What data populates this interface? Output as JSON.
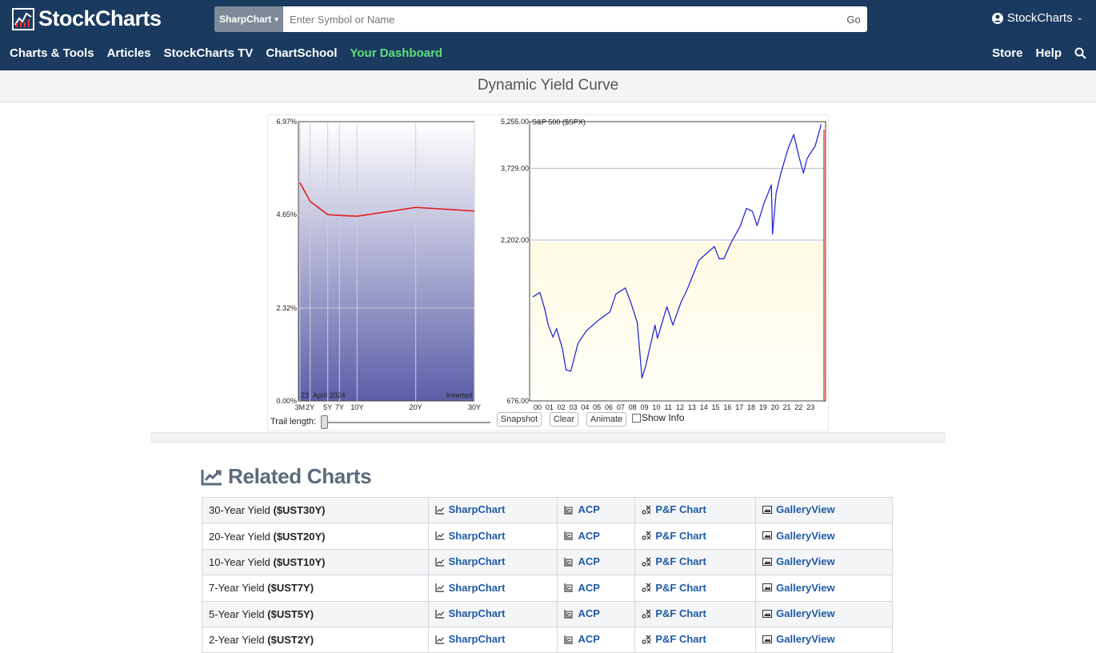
{
  "header": {
    "logo_text": "StockCharts",
    "search_type": "SharpChart",
    "search_placeholder": "Enter Symbol or Name",
    "search_go": "Go",
    "account_label": "StockCharts"
  },
  "nav": {
    "left": [
      "Charts & Tools",
      "Articles",
      "StockCharts TV",
      "ChartSchool",
      "Your Dashboard"
    ],
    "active_index": 4,
    "right": [
      "Store",
      "Help"
    ]
  },
  "page_title": "Dynamic Yield Curve",
  "chart_data": [
    {
      "type": "line",
      "title": "",
      "categories": [
        "3M",
        "2Y",
        "5Y",
        "7Y",
        "10Y",
        "20Y",
        "30Y"
      ],
      "values": [
        5.45,
        4.98,
        4.65,
        4.63,
        4.61,
        4.83,
        4.74
      ],
      "y_ticks": [
        "6.97%",
        "4.65%",
        "2.32%",
        "0.00%"
      ],
      "ylim": [
        0,
        6.97
      ],
      "date_day": "23",
      "date_label": "April 2024",
      "status_label": "Inverted",
      "colors": {
        "line": "#e02020",
        "fill_top": "#ffffff",
        "fill_bottom": "#5b5ea8"
      }
    },
    {
      "type": "line",
      "title": "S&P 500 ($SPX)",
      "x_ticks": [
        "00",
        "01",
        "02",
        "03",
        "04",
        "05",
        "06",
        "07",
        "08",
        "09",
        "10",
        "11",
        "12",
        "13",
        "14",
        "15",
        "16",
        "17",
        "18",
        "19",
        "20",
        "21",
        "22",
        "23"
      ],
      "y_ticks": [
        "5,255.00",
        "3,729.00",
        "2,202.00",
        "676.00"
      ],
      "y_scale": "log",
      "ylim": [
        676,
        5255
      ],
      "x": [
        2000,
        2000.6,
        2001,
        2001.3,
        2001.7,
        2002,
        2002.5,
        2002.8,
        2003.2,
        2003.8,
        2004.5,
        2005.5,
        2006.5,
        2007,
        2007.8,
        2008.3,
        2008.8,
        2009.2,
        2009.5,
        2010.3,
        2010.5,
        2011.3,
        2011.8,
        2012.5,
        2013,
        2014,
        2015.3,
        2015.7,
        2016.1,
        2016.7,
        2017.5,
        2018,
        2018.5,
        2018.9,
        2019.5,
        2020.1,
        2020.2,
        2020.5,
        2020.9,
        2021.5,
        2021.99,
        2022.4,
        2022.8,
        2023.1,
        2023.8,
        2024.3
      ],
      "values": [
        1450,
        1500,
        1330,
        1180,
        1080,
        1150,
        990,
        850,
        840,
        1030,
        1130,
        1220,
        1300,
        1480,
        1550,
        1380,
        1200,
        800,
        870,
        1180,
        1070,
        1350,
        1180,
        1400,
        1530,
        1900,
        2100,
        1920,
        1920,
        2160,
        2450,
        2780,
        2720,
        2450,
        2900,
        3300,
        2300,
        3100,
        3600,
        4300,
        4780,
        4100,
        3600,
        4000,
        4400,
        5150
      ],
      "colors": {
        "line": "#2a2ad8",
        "cursor": "#e02020",
        "fill_top": "#fffbe6",
        "fill_bottom": "#fffff6"
      }
    }
  ],
  "controls": {
    "trail_label": "Trail length:",
    "snapshot": "Snapshot",
    "clear": "Clear",
    "animate": "Animate",
    "show_info": "Show Info"
  },
  "related": {
    "title": "Related Charts",
    "link_labels": {
      "sharpchart": "SharpChart",
      "acp": "ACP",
      "pnf": "P&F Chart",
      "gallery": "GalleryView"
    },
    "rows": [
      {
        "name": "30-Year Yield",
        "symbol": "($UST30Y)"
      },
      {
        "name": "20-Year Yield",
        "symbol": "($UST20Y)"
      },
      {
        "name": "10-Year Yield",
        "symbol": "($UST10Y)"
      },
      {
        "name": "7-Year Yield",
        "symbol": "($UST7Y)"
      },
      {
        "name": "5-Year Yield",
        "symbol": "($UST5Y)"
      },
      {
        "name": "2-Year Yield",
        "symbol": "($UST2Y)"
      }
    ]
  }
}
